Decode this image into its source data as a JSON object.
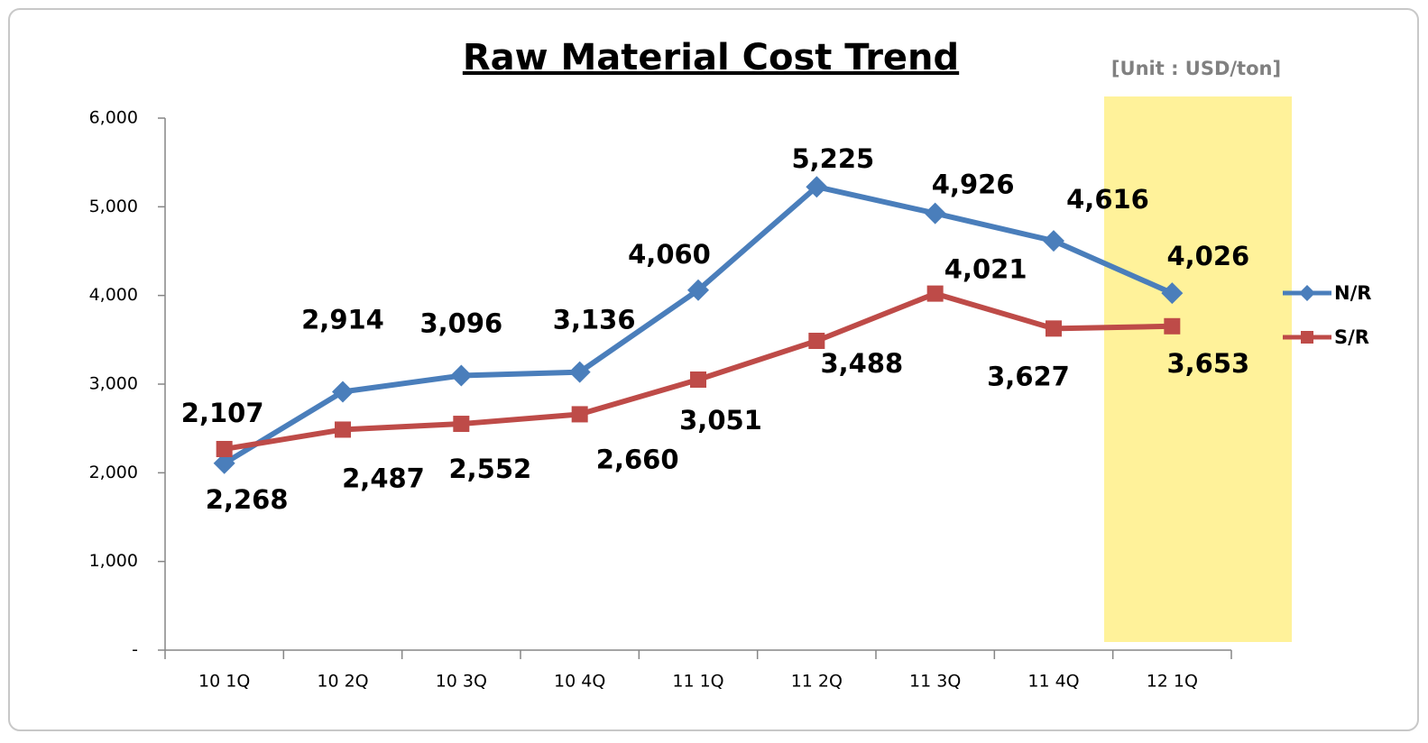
{
  "chart_data": {
    "type": "line",
    "title": "Raw Material Cost Trend",
    "annotation": "[Unit : USD/ton]",
    "categories": [
      "10 1Q",
      "10 2Q",
      "10 3Q",
      "10 4Q",
      "11 1Q",
      "11 2Q",
      "11 3Q",
      "11 4Q",
      "12 1Q"
    ],
    "series": [
      {
        "name": "N/R",
        "color": "#4a7ebb",
        "marker": "diamond",
        "values": [
          2107,
          2914,
          3096,
          3136,
          4060,
          5225,
          4926,
          4616,
          4026
        ],
        "value_labels": [
          "2,107",
          "2,914",
          "3,096",
          "3,136",
          "4,060",
          "5,225",
          "4,926",
          "4,616",
          "4,026"
        ]
      },
      {
        "name": "S/R",
        "color": "#be4b48",
        "marker": "square",
        "values": [
          2268,
          2487,
          2552,
          2660,
          3051,
          3488,
          4021,
          3627,
          3653
        ],
        "value_labels": [
          "2,268",
          "2,487",
          "2,552",
          "2,660",
          "3,051",
          "3,488",
          "4,021",
          "3,627",
          "3,653"
        ]
      }
    ],
    "ylim": [
      0,
      6000
    ],
    "yticks": [
      {
        "value": 0,
        "label": "-"
      },
      {
        "value": 1000,
        "label": "1,000"
      },
      {
        "value": 2000,
        "label": "2,000"
      },
      {
        "value": 3000,
        "label": "3,000"
      },
      {
        "value": 4000,
        "label": "4,000"
      },
      {
        "value": 5000,
        "label": "5,000"
      },
      {
        "value": 6000,
        "label": "6,000"
      }
    ],
    "grid": false,
    "legend": "right"
  }
}
